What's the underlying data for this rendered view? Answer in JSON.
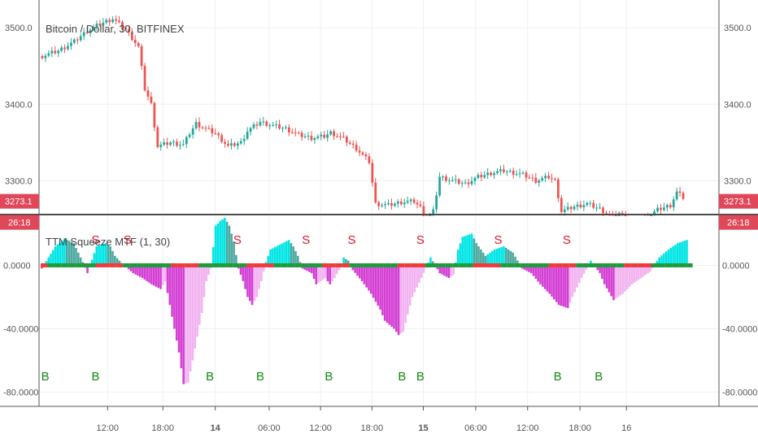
{
  "chart_data": [
    {
      "type": "candlestick",
      "title": "Bitcoin / Dollar, 30, BITFINEX",
      "y_ticks": [
        "3500.0",
        "3400.0",
        "3300.0"
      ],
      "ylim": [
        3260,
        3530
      ],
      "last_price": "3273.1",
      "countdown": "26:18",
      "colors": {
        "up": "#26a69a",
        "down": "#ef5350",
        "tag": "#e0485a"
      },
      "series": [
        {
          "name": "price path",
          "values": [
            [
              0,
              3463
            ],
            [
              5,
              3470
            ],
            [
              10,
              3482
            ],
            [
              14,
              3496
            ],
            [
              18,
              3505
            ],
            [
              22,
              3512
            ],
            [
              26,
              3498
            ],
            [
              28,
              3487
            ],
            [
              30,
              3475
            ],
            [
              32,
              3420
            ],
            [
              34,
              3400
            ],
            [
              36,
              3345
            ],
            [
              40,
              3350
            ],
            [
              44,
              3347
            ],
            [
              46,
              3362
            ],
            [
              48,
              3375
            ],
            [
              50,
              3370
            ],
            [
              54,
              3362
            ],
            [
              58,
              3345
            ],
            [
              62,
              3350
            ],
            [
              64,
              3365
            ],
            [
              68,
              3377
            ],
            [
              72,
              3372
            ],
            [
              76,
              3368
            ],
            [
              80,
              3360
            ],
            [
              84,
              3356
            ],
            [
              88,
              3358
            ],
            [
              90,
              3363
            ],
            [
              94,
              3355
            ],
            [
              98,
              3342
            ],
            [
              102,
              3325
            ],
            [
              104,
              3270
            ],
            [
              108,
              3268
            ],
            [
              112,
              3272
            ],
            [
              116,
              3273
            ],
            [
              118,
              3265
            ],
            [
              120,
              3248
            ],
            [
              122,
              3260
            ],
            [
              124,
              3305
            ],
            [
              128,
              3300
            ],
            [
              132,
              3296
            ],
            [
              136,
              3305
            ],
            [
              140,
              3310
            ],
            [
              144,
              3313
            ],
            [
              150,
              3308
            ],
            [
              154,
              3300
            ],
            [
              158,
              3305
            ],
            [
              160,
              3300
            ],
            [
              162,
              3260
            ],
            [
              166,
              3266
            ],
            [
              170,
              3270
            ],
            [
              174,
              3263
            ],
            [
              178,
              3252
            ],
            [
              180,
              3258
            ],
            [
              184,
              3245
            ],
            [
              188,
              3250
            ],
            [
              192,
              3262
            ],
            [
              196,
              3268
            ],
            [
              198,
              3285
            ],
            [
              200,
              3278
            ]
          ]
        }
      ]
    },
    {
      "type": "bar",
      "title": "TTM Squeeze MTF (1, 30)",
      "y_ticks": [
        "0.0000",
        "-40.0000",
        "-80.0000"
      ],
      "ylim": [
        -88,
        30
      ],
      "colors": {
        "pos_strong": "#00e5e5",
        "pos_weak": "#4da9a0",
        "neg_strong": "#d43fd4",
        "neg_weak": "#f2b3f0"
      },
      "series": [
        {
          "name": "momentum",
          "values": [
            [
              0,
              -2
            ],
            [
              6,
              12
            ],
            [
              10,
              17
            ],
            [
              14,
              14
            ],
            [
              16,
              8
            ],
            [
              18,
              2
            ],
            [
              20,
              -5
            ],
            [
              24,
              12
            ],
            [
              28,
              14
            ],
            [
              30,
              12
            ],
            [
              32,
              6
            ],
            [
              36,
              0
            ],
            [
              40,
              -5
            ],
            [
              44,
              -8
            ],
            [
              48,
              -12
            ],
            [
              52,
              -15
            ],
            [
              54,
              -10
            ],
            [
              56,
              -25
            ],
            [
              58,
              -40
            ],
            [
              60,
              -55
            ],
            [
              62,
              -75
            ],
            [
              64,
              -74
            ],
            [
              66,
              -60
            ],
            [
              68,
              -45
            ],
            [
              70,
              -30
            ],
            [
              72,
              -10
            ],
            [
              74,
              -2
            ],
            [
              76,
              25
            ],
            [
              78,
              28
            ],
            [
              80,
              30
            ],
            [
              82,
              25
            ],
            [
              84,
              15
            ],
            [
              86,
              -2
            ],
            [
              88,
              -10
            ],
            [
              90,
              -20
            ],
            [
              92,
              -25
            ],
            [
              94,
              -20
            ],
            [
              96,
              -10
            ],
            [
              98,
              2
            ],
            [
              100,
              10
            ],
            [
              104,
              13
            ],
            [
              108,
              16
            ],
            [
              110,
              12
            ],
            [
              112,
              6
            ],
            [
              114,
              -2
            ],
            [
              118,
              -5
            ],
            [
              120,
              -12
            ],
            [
              124,
              -8
            ],
            [
              126,
              -12
            ],
            [
              128,
              -8
            ],
            [
              130,
              -3
            ],
            [
              132,
              5
            ],
            [
              134,
              3
            ],
            [
              136,
              -3
            ],
            [
              140,
              -10
            ],
            [
              144,
              -18
            ],
            [
              148,
              -28
            ],
            [
              150,
              -35
            ],
            [
              154,
              -40
            ],
            [
              156,
              -44
            ],
            [
              158,
              -42
            ],
            [
              162,
              -20
            ],
            [
              166,
              -8
            ],
            [
              170,
              5
            ],
            [
              174,
              -5
            ],
            [
              178,
              -8
            ],
            [
              180,
              -6
            ],
            [
              182,
              10
            ],
            [
              184,
              18
            ],
            [
              188,
              20
            ],
            [
              190,
              14
            ],
            [
              194,
              6
            ],
            [
              198,
              10
            ],
            [
              202,
              12
            ],
            [
              206,
              8
            ],
            [
              210,
              -2
            ],
            [
              214,
              -5
            ],
            [
              218,
              -12
            ],
            [
              222,
              -18
            ],
            [
              226,
              -25
            ],
            [
              230,
              -27
            ],
            [
              232,
              -20
            ],
            [
              236,
              -8
            ],
            [
              240,
              3
            ],
            [
              244,
              -5
            ],
            [
              246,
              -12
            ],
            [
              250,
              -22
            ],
            [
              254,
              -18
            ],
            [
              258,
              -12
            ],
            [
              262,
              -8
            ],
            [
              266,
              -4
            ],
            [
              270,
              5
            ],
            [
              274,
              10
            ],
            [
              278,
              14
            ],
            [
              282,
              16
            ]
          ]
        }
      ],
      "signals": [
        {
          "type": "S",
          "x": 24
        },
        {
          "type": "S",
          "x": 38
        },
        {
          "type": "S",
          "x": 86
        },
        {
          "type": "S",
          "x": 116
        },
        {
          "type": "S",
          "x": 136
        },
        {
          "type": "S",
          "x": 166
        },
        {
          "type": "S",
          "x": 200
        },
        {
          "type": "S",
          "x": 230
        },
        {
          "type": "B",
          "x": 2
        },
        {
          "type": "B",
          "x": 24
        },
        {
          "type": "B",
          "x": 74
        },
        {
          "type": "B",
          "x": 96
        },
        {
          "type": "B",
          "x": 126
        },
        {
          "type": "B",
          "x": 158
        },
        {
          "type": "B",
          "x": 166
        },
        {
          "type": "B",
          "x": 226
        },
        {
          "type": "B",
          "x": 244
        }
      ],
      "signal_colors": {
        "S": "#e0152b",
        "B": "#118a11"
      }
    }
  ],
  "x_axis": {
    "labels": [
      {
        "text": "12:00",
        "x": 0.14,
        "bold": false
      },
      {
        "text": "18:00",
        "x": 0.253,
        "bold": false
      },
      {
        "text": "14",
        "x": 0.36,
        "bold": true
      },
      {
        "text": "06:00",
        "x": 0.47,
        "bold": false
      },
      {
        "text": "12:00",
        "x": 0.575,
        "bold": false
      },
      {
        "text": "18:00",
        "x": 0.68,
        "bold": false
      },
      {
        "text": "15",
        "x": 0.785,
        "bold": true
      },
      {
        "text": "06:00",
        "x": 0.892,
        "bold": false
      },
      {
        "text": "12:00",
        "x": 0.998,
        "bold": false
      },
      {
        "text": "18:00",
        "x": 1.105,
        "bold": false
      },
      {
        "text": "16",
        "x": 1.2,
        "bold": false
      }
    ]
  }
}
